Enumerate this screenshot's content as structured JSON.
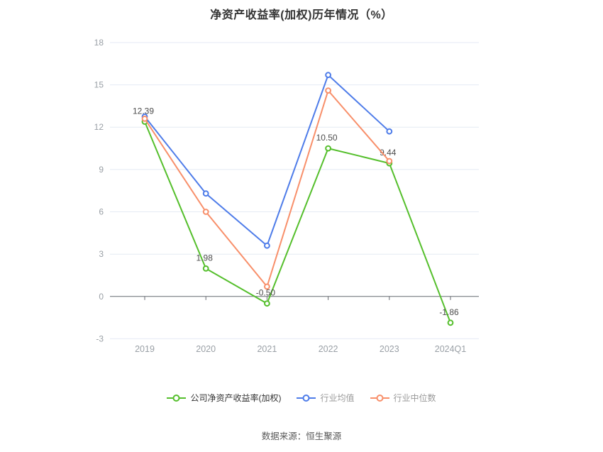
{
  "title": "净资产收益率(加权)历年情况（%）",
  "footer": {
    "source": "数据来源：恒生聚源"
  },
  "chart_data": {
    "type": "line",
    "title": "净资产收益率(加权)历年情况（%）",
    "categories": [
      "2019",
      "2020",
      "2021",
      "2022",
      "2023",
      "2024Q1"
    ],
    "yticks": [
      -3,
      0,
      3,
      6,
      9,
      12,
      15,
      18
    ],
    "ylim": [
      -3,
      18
    ],
    "grid": true,
    "legend_position": "bottom",
    "colors": {
      "grid_line": "#e4eaf4",
      "zero_axis": "#666a70",
      "tick_label": "#9aa0a6",
      "data_label": "#4d4d4d"
    },
    "series": [
      {
        "name": "公司净资产收益率(加权)",
        "color": "#55bf2c",
        "legend_text_color": "#333333",
        "values": [
          12.39,
          1.98,
          -0.5,
          10.5,
          9.44,
          -1.86
        ],
        "data_labels": [
          "12.39",
          "1.98",
          "-0.50",
          "10.50",
          "9.44",
          "-1.86"
        ]
      },
      {
        "name": "行业均值",
        "color": "#4e7ce9",
        "legend_text_color": "#999999",
        "values": [
          12.75,
          7.3,
          3.6,
          15.7,
          11.7,
          null
        ],
        "data_labels": null
      },
      {
        "name": "行业中位数",
        "color": "#f88f6a",
        "legend_text_color": "#999999",
        "values": [
          12.6,
          6.0,
          0.7,
          14.6,
          9.6,
          null
        ],
        "data_labels": null
      }
    ]
  }
}
